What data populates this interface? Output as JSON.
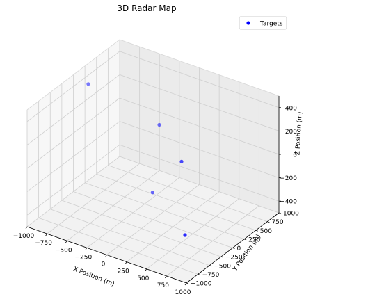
{
  "chart_data": {
    "type": "scatter",
    "projection": "3d",
    "title": "3D Radar Map",
    "xlabel": "X Position (m)",
    "ylabel": "Y Position (m)",
    "zlabel": "Z Position (m)",
    "xlim": [
      -1000,
      1000
    ],
    "ylim": [
      -1000,
      1000
    ],
    "zlim": [
      -500,
      500
    ],
    "xticks": [
      "−1000",
      "−750",
      "−500",
      "−250",
      "0",
      "250",
      "500",
      "750",
      "1000"
    ],
    "yticks": [
      "−1000",
      "−750",
      "−500",
      "−250",
      "0",
      "250",
      "500",
      "750",
      "1000"
    ],
    "zticks": [
      "−400",
      "−200",
      "0",
      "200",
      "400"
    ],
    "grid": true,
    "legend": {
      "position": "top-right",
      "entries": [
        "Targets"
      ]
    },
    "series": [
      {
        "name": "Targets",
        "color": "#0000ff",
        "points": [
          {
            "x": 598,
            "y": -338,
            "z": -385
          },
          {
            "x": -180,
            "y": 300,
            "z": -400
          },
          {
            "x": 300,
            "y": 100,
            "z": 40
          },
          {
            "x": -200,
            "y": 480,
            "z": 120
          },
          {
            "x": -900,
            "y": 150,
            "z": 400
          }
        ]
      }
    ]
  }
}
